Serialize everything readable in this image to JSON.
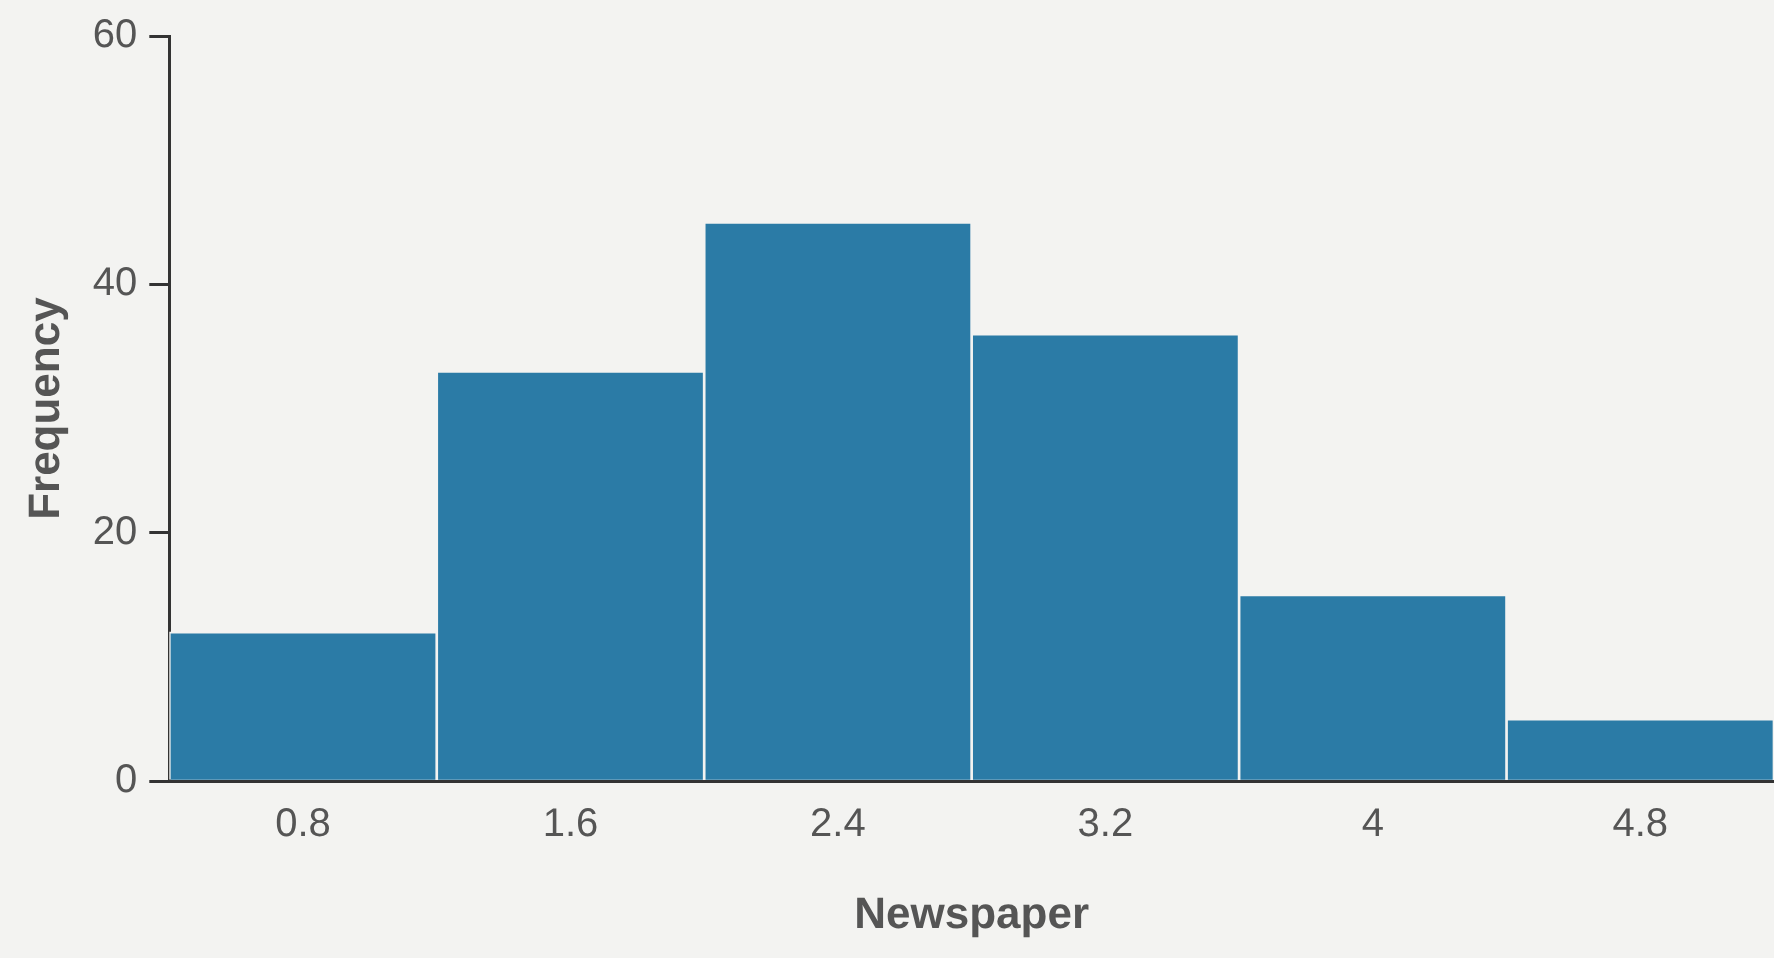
{
  "chart_data": {
    "type": "histogram",
    "xlabel": "Newspaper",
    "ylabel": "Frequency",
    "bins": [
      0.4,
      1.2,
      2.0,
      2.8,
      3.6,
      4.4,
      5.2
    ],
    "values": [
      12,
      33,
      45,
      36,
      15,
      5
    ],
    "color": "#2b7ba6",
    "xlim": [
      0.4,
      5.2
    ],
    "xticks": [
      0.8,
      1.6,
      2.4,
      3.2,
      4,
      4.8
    ],
    "ylim": [
      0,
      60
    ],
    "yticks": [
      0,
      20,
      40,
      60
    ],
    "grid": false
  }
}
